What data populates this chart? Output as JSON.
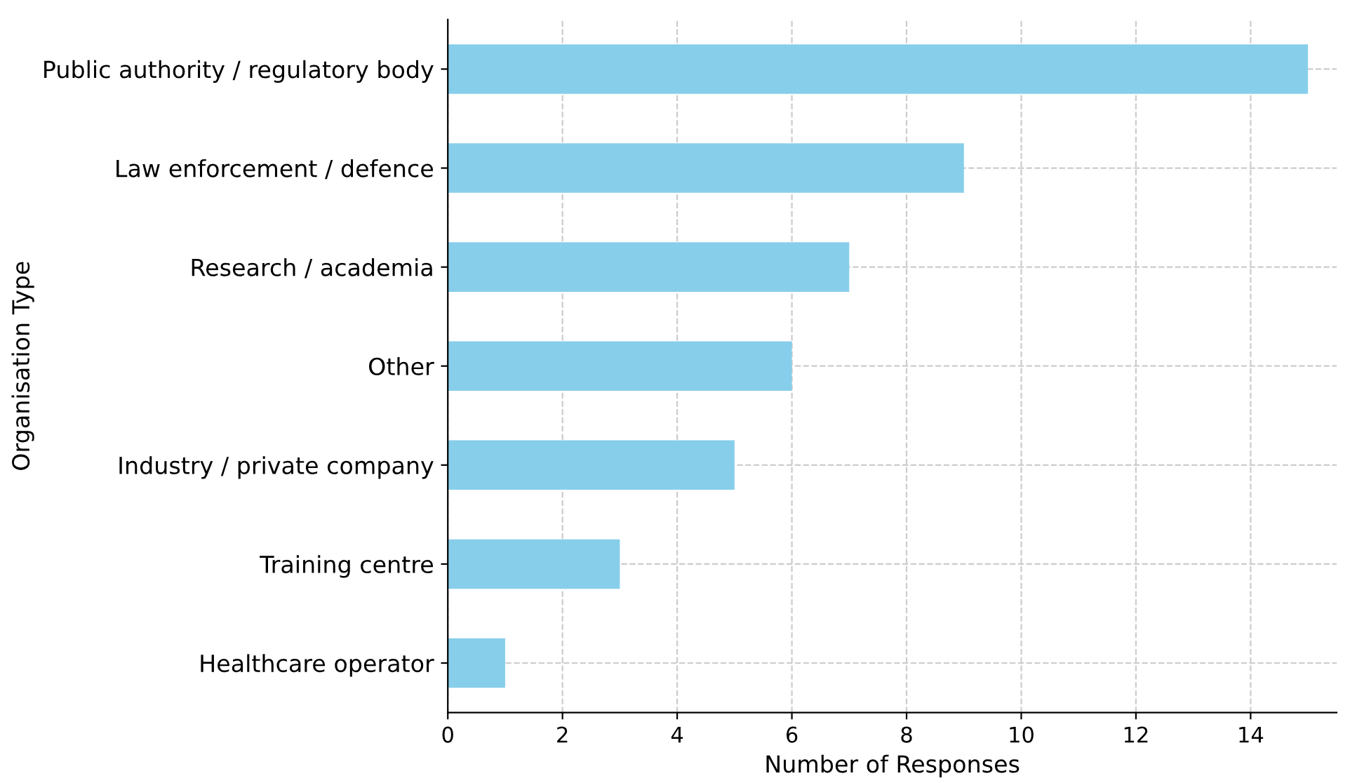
{
  "chart_data": {
    "type": "bar",
    "orientation": "horizontal",
    "xlabel": "Number of Responses",
    "ylabel": "Organisation Type",
    "categories": [
      "Public authority / regulatory body",
      "Law enforcement / defence",
      "Research / academia",
      "Other",
      "Industry / private company",
      "Training centre",
      "Healthcare operator"
    ],
    "values": [
      15,
      9,
      7,
      6,
      5,
      3,
      1
    ],
    "color": "#87ceeb",
    "xlim": [
      0,
      15.5
    ],
    "xticks": [
      0,
      2,
      4,
      6,
      8,
      10,
      12,
      14
    ],
    "grid": true
  }
}
